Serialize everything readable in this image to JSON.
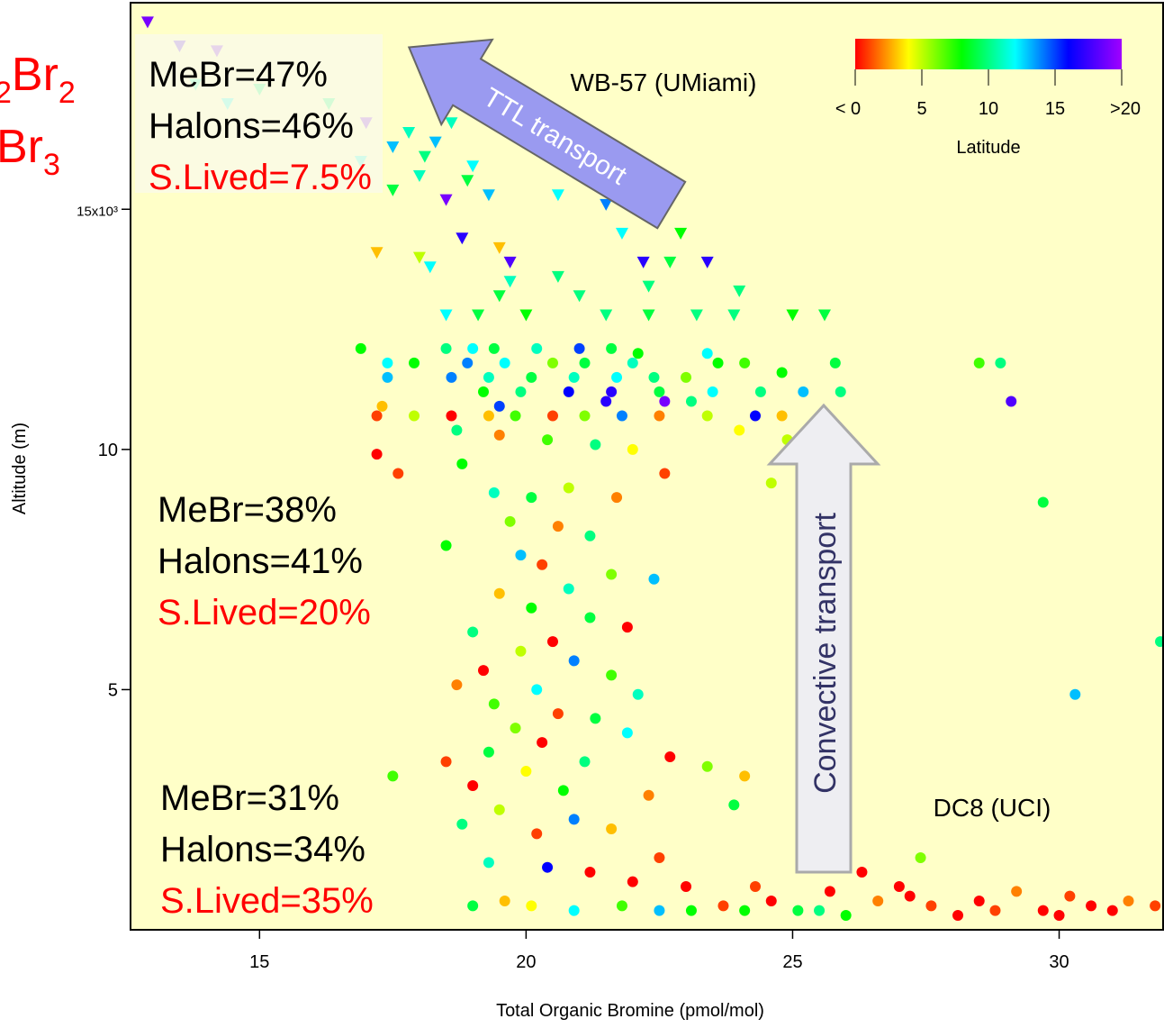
{
  "chart_data": {
    "type": "scatter",
    "xlabel": "Total Organic Bromine (pmol/mol)",
    "ylabel": "Altitude (m)",
    "xlim": [
      12.58,
      31.95
    ],
    "ylim": [
      0,
      19300
    ],
    "xticks": [
      15,
      20,
      25,
      30
    ],
    "yticks": [
      {
        "value": 5000,
        "label": "5"
      },
      {
        "value": 10000,
        "label": "10"
      },
      {
        "value": 15000,
        "label": "15x10³"
      }
    ],
    "colorbar": {
      "title": "Latitude",
      "lim": [
        0,
        20
      ],
      "ticks": [
        {
          "value": 0,
          "label": "< 0"
        },
        5,
        10,
        15,
        {
          "value": 20,
          "label": ">20"
        }
      ],
      "colors": [
        "#ff0000",
        "#ffff00",
        "#00ff00",
        "#00ffff",
        "#0000ff",
        "#a000ff"
      ]
    },
    "annotations": [
      "WB-57 (UMiami)",
      "DC8 (UCI)",
      "TTL transport",
      "Convective transport"
    ],
    "cut_labels": [
      [
        "2",
        "Br",
        "2"
      ],
      [
        "Br",
        "3"
      ]
    ],
    "composition_boxes": [
      [
        "MeBr=47%",
        "Halons=46%",
        "S.Lived=7.5%"
      ],
      [
        "MeBr=38%",
        "Halons=41%",
        "S.Lived=20%"
      ],
      [
        "MeBr=31%",
        "Halons=34%",
        "S.Lived=35%"
      ]
    ],
    "series": [
      {
        "marker": "triangle",
        "x": [
          12.9,
          13.5,
          14.2,
          13.8,
          14.4,
          15.0,
          16.3,
          17.0,
          17.5,
          17.8,
          18.3,
          18.6,
          19.0,
          18.0,
          17.5,
          18.9,
          19.3,
          18.5,
          20.6,
          21.5,
          21.8,
          22.9,
          18.8,
          19.5,
          17.2,
          18.0,
          19.7,
          22.2,
          23.4,
          18.2,
          20.6,
          22.3,
          22.7,
          19.5,
          21.0,
          24.0,
          18.5,
          19.1,
          20.0,
          21.5,
          22.3,
          23.2,
          23.9,
          25.0,
          25.6,
          19.7,
          16.9,
          18.1
        ],
        "values": [
          18900,
          18400,
          18300,
          17600,
          17200,
          17500,
          17200,
          16800,
          16300,
          16600,
          16400,
          16800,
          15900,
          15700,
          15400,
          15600,
          15300,
          15200,
          15300,
          15100,
          14500,
          14500,
          14400,
          14200,
          14100,
          14000,
          13900,
          13900,
          13900,
          13800,
          13600,
          13400,
          13900,
          13200,
          13200,
          13300,
          12800,
          12800,
          12800,
          12800,
          12800,
          12800,
          12800,
          12800,
          12800,
          13500,
          16000,
          16100
        ],
        "latitude": [
          19,
          18,
          19,
          11,
          12,
          10,
          10,
          19,
          13,
          11,
          13,
          11,
          12,
          11,
          9,
          9,
          13,
          19,
          12,
          14,
          12,
          8,
          17,
          3,
          3,
          5,
          18,
          17,
          17,
          12,
          10,
          10,
          9,
          9,
          10,
          10,
          12,
          9,
          8,
          10,
          9,
          10,
          10,
          8,
          9,
          11,
          12,
          10
        ]
      },
      {
        "marker": "circle",
        "x": [
          16.9,
          18.5,
          19.0,
          19.4,
          20.2,
          21.0,
          21.6,
          22.1,
          23.4,
          17.4,
          17.9,
          18.9,
          19.6,
          20.5,
          21.1,
          22.0,
          23.6,
          24.1,
          25.8,
          28.5,
          28.9,
          17.4,
          18.6,
          19.3,
          20.1,
          20.9,
          21.7,
          22.4,
          23.0,
          24.8,
          19.2,
          19.9,
          20.8,
          21.6,
          22.5,
          23.5,
          24.4,
          25.2,
          25.9,
          19.5,
          21.5,
          22.6,
          23.1,
          29.1,
          17.2,
          17.9,
          18.6,
          19.3,
          19.8,
          20.5,
          21.1,
          21.8,
          22.5,
          23.4,
          24.3,
          24.8,
          17.3,
          18.7,
          19.5,
          20.4,
          21.3,
          22.0,
          24.0,
          24.9,
          17.2,
          17.6,
          18.8,
          19.4,
          20.1,
          20.8,
          21.7,
          22.6,
          24.6,
          29.7,
          19.7,
          20.6,
          21.2,
          18.5,
          19.9,
          20.3,
          21.6,
          22.4,
          20.8,
          19.5,
          20.1,
          21.2,
          19.0,
          20.5,
          21.9,
          31.9,
          19.9,
          20.9,
          19.2,
          21.6,
          18.7,
          20.2,
          22.1,
          30.3,
          19.4,
          20.6,
          21.3,
          19.8,
          21.9,
          20.3,
          19.3,
          22.7,
          21.1,
          18.5,
          17.5,
          20.0,
          23.4,
          24.1,
          19.0,
          20.7,
          22.3,
          23.9,
          19.5,
          20.9,
          18.8,
          21.6,
          20.2,
          27.4,
          22.5,
          19.3,
          20.4,
          21.2,
          19.0,
          19.6,
          20.1,
          20.9,
          21.8,
          22.5,
          23.1,
          23.7,
          24.1,
          24.6,
          25.1,
          25.7,
          26.3,
          26.6,
          27.2,
          27.6,
          28.1,
          28.5,
          29.2,
          29.7,
          30.2,
          30.6,
          31.0,
          31.8,
          25.5,
          26.0,
          27.0,
          28.8,
          30.0,
          31.3,
          23.0,
          24.3,
          22.0
        ],
        "values": [
          12100,
          12100,
          12100,
          12100,
          12100,
          12100,
          12100,
          12000,
          12000,
          11800,
          11800,
          11800,
          11800,
          11800,
          11800,
          11800,
          11800,
          11800,
          11800,
          11800,
          11800,
          11500,
          11500,
          11500,
          11500,
          11500,
          11500,
          11500,
          11500,
          11600,
          11200,
          11200,
          11200,
          11200,
          11200,
          11200,
          11200,
          11200,
          11200,
          10900,
          11000,
          11000,
          11000,
          11000,
          10700,
          10700,
          10700,
          10700,
          10700,
          10700,
          10700,
          10700,
          10700,
          10700,
          10700,
          10700,
          10900,
          10400,
          10300,
          10200,
          10100,
          10000,
          10400,
          10200,
          9900,
          9500,
          9700,
          9100,
          9000,
          9200,
          9000,
          9500,
          9300,
          8900,
          8500,
          8400,
          8200,
          8000,
          7800,
          7600,
          7400,
          7300,
          7100,
          7000,
          6700,
          6500,
          6200,
          6000,
          6300,
          6000,
          5800,
          5600,
          5400,
          5300,
          5100,
          5000,
          4900,
          4900,
          4700,
          4500,
          4400,
          4200,
          4100,
          3900,
          3700,
          3600,
          3500,
          3500,
          3200,
          3300,
          3400,
          3200,
          3000,
          2900,
          2800,
          2600,
          2500,
          2300,
          2200,
          2100,
          2000,
          1500,
          1500,
          1400,
          1300,
          1200,
          500,
          600,
          500,
          400,
          500,
          400,
          400,
          500,
          400,
          600,
          400,
          800,
          1200,
          600,
          700,
          500,
          300,
          600,
          800,
          400,
          700,
          500,
          400,
          500,
          400,
          300,
          900,
          400,
          300,
          600,
          900,
          900,
          1000
        ],
        "latitude": [
          8,
          10,
          12,
          9,
          11,
          15,
          9,
          8,
          12,
          12,
          8,
          14,
          12,
          6,
          9,
          11,
          8,
          7,
          9,
          7,
          10,
          13,
          14,
          11,
          9,
          11,
          12,
          10,
          6,
          8,
          8,
          10,
          16,
          17,
          9,
          12,
          10,
          13,
          10,
          15,
          17,
          19,
          10,
          18,
          1,
          5,
          0,
          3,
          7,
          1,
          6,
          14,
          2,
          5,
          16,
          3,
          3,
          10,
          2,
          7,
          10,
          4,
          4,
          5,
          0,
          1,
          8,
          11,
          9,
          5,
          2,
          1,
          5,
          9,
          6,
          2,
          10,
          8,
          13,
          1,
          6,
          13,
          11,
          3,
          8,
          9,
          10,
          0,
          0,
          10,
          5,
          14,
          0,
          7,
          2,
          12,
          11,
          13,
          7,
          1,
          9,
          6,
          12,
          0,
          9,
          0,
          10,
          1,
          7,
          4,
          6,
          3,
          0,
          8,
          2,
          9,
          5,
          14,
          10,
          3,
          1,
          6,
          1,
          11,
          16,
          0,
          9,
          3,
          4,
          12,
          7,
          13,
          8,
          1,
          8,
          0,
          9,
          0,
          0,
          2,
          0,
          1,
          0,
          0,
          2,
          0,
          1,
          0,
          0,
          1,
          10,
          8,
          0,
          1,
          0,
          2,
          0,
          1,
          0
        ]
      }
    ]
  }
}
